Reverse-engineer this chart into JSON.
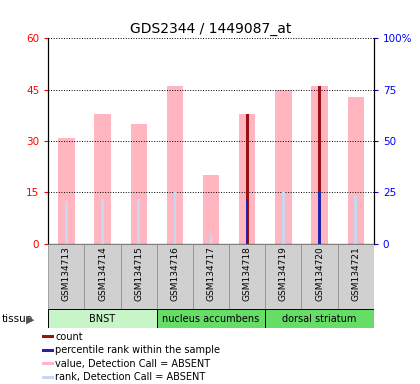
{
  "title": "GDS2344 / 1449087_at",
  "samples": [
    "GSM134713",
    "GSM134714",
    "GSM134715",
    "GSM134716",
    "GSM134717",
    "GSM134718",
    "GSM134719",
    "GSM134720",
    "GSM134721"
  ],
  "value_absent": [
    31,
    38,
    35,
    46,
    20,
    38,
    45,
    46,
    43
  ],
  "rank_absent": [
    12.5,
    13,
    13,
    15,
    3,
    13.5,
    15,
    15,
    14
  ],
  "count_value": [
    null,
    null,
    null,
    null,
    null,
    38,
    null,
    46,
    null
  ],
  "percentile_rank": [
    null,
    null,
    null,
    null,
    null,
    13,
    null,
    15,
    null
  ],
  "ylim_left": [
    0,
    60
  ],
  "ylim_right": [
    0,
    100
  ],
  "yticks_left": [
    0,
    15,
    30,
    45,
    60
  ],
  "yticks_right": [
    0,
    25,
    50,
    75,
    100
  ],
  "ytick_labels_left": [
    "0",
    "15",
    "30",
    "45",
    "60"
  ],
  "ytick_labels_right": [
    "0",
    "25",
    "50",
    "75",
    "100%"
  ],
  "color_count": "#9b1010",
  "color_percentile": "#2222aa",
  "color_value_absent": "#ffb6c1",
  "color_rank_absent": "#c8d8f0",
  "tissue_groups": [
    {
      "label": "BNST",
      "start": 0,
      "end": 2,
      "color": "#c8f5c8"
    },
    {
      "label": "nucleus accumbens",
      "start": 3,
      "end": 5,
      "color": "#66dd66"
    },
    {
      "label": "dorsal striatum",
      "start": 6,
      "end": 8,
      "color": "#66dd66"
    }
  ],
  "legend_items": [
    {
      "color": "#9b1010",
      "label": "count"
    },
    {
      "color": "#2222aa",
      "label": "percentile rank within the sample"
    },
    {
      "color": "#ffb6c1",
      "label": "value, Detection Call = ABSENT"
    },
    {
      "color": "#c8d8f0",
      "label": "rank, Detection Call = ABSENT"
    }
  ]
}
